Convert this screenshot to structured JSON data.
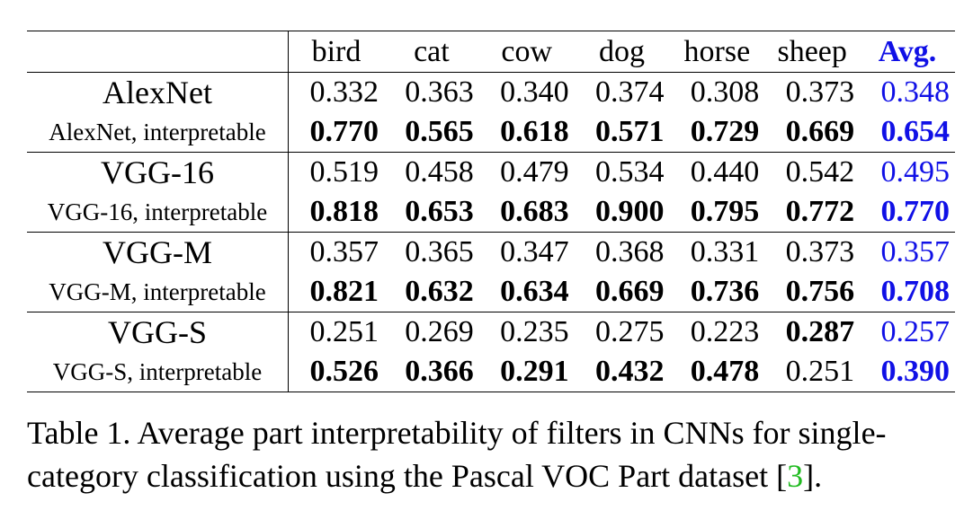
{
  "table": {
    "headers": [
      "bird",
      "cat",
      "cow",
      "dog",
      "horse",
      "sheep",
      "Avg."
    ],
    "rows": [
      {
        "model": "AlexNet",
        "values": [
          "0.332",
          "0.363",
          "0.340",
          "0.374",
          "0.308",
          "0.373",
          "0.348"
        ]
      },
      {
        "model": "AlexNet, interpretable",
        "values": [
          "0.770",
          "0.565",
          "0.618",
          "0.571",
          "0.729",
          "0.669",
          "0.654"
        ]
      },
      {
        "model": "VGG-16",
        "values": [
          "0.519",
          "0.458",
          "0.479",
          "0.534",
          "0.440",
          "0.542",
          "0.495"
        ]
      },
      {
        "model": "VGG-16, interpretable",
        "values": [
          "0.818",
          "0.653",
          "0.683",
          "0.900",
          "0.795",
          "0.772",
          "0.770"
        ]
      },
      {
        "model": "VGG-M",
        "values": [
          "0.357",
          "0.365",
          "0.347",
          "0.368",
          "0.331",
          "0.373",
          "0.357"
        ]
      },
      {
        "model": "VGG-M, interpretable",
        "values": [
          "0.821",
          "0.632",
          "0.634",
          "0.669",
          "0.736",
          "0.756",
          "0.708"
        ]
      },
      {
        "model": "VGG-S",
        "values": [
          "0.251",
          "0.269",
          "0.235",
          "0.275",
          "0.223",
          "0.287",
          "0.257"
        ]
      },
      {
        "model": "VGG-S, interpretable",
        "values": [
          "0.526",
          "0.366",
          "0.291",
          "0.432",
          "0.478",
          "0.251",
          "0.390"
        ]
      }
    ],
    "bold_cells": [
      [
        false,
        false,
        false,
        false,
        false,
        false,
        false
      ],
      [
        true,
        true,
        true,
        true,
        true,
        true,
        true
      ],
      [
        false,
        false,
        false,
        false,
        false,
        false,
        false
      ],
      [
        true,
        true,
        true,
        true,
        true,
        true,
        true
      ],
      [
        false,
        false,
        false,
        false,
        false,
        false,
        false
      ],
      [
        true,
        true,
        true,
        true,
        true,
        true,
        true
      ],
      [
        false,
        false,
        false,
        false,
        false,
        true,
        false
      ],
      [
        true,
        true,
        true,
        true,
        true,
        false,
        true
      ]
    ]
  },
  "caption": {
    "text_before": "Table 1. Average part interpretability of filters in CNNs for single-category classification using the Pascal VOC Part dataset [",
    "citation": "3",
    "text_after": "]."
  },
  "colors": {
    "avg_column": "#1010e6",
    "citation": "#22bb22",
    "text": "#000000"
  }
}
